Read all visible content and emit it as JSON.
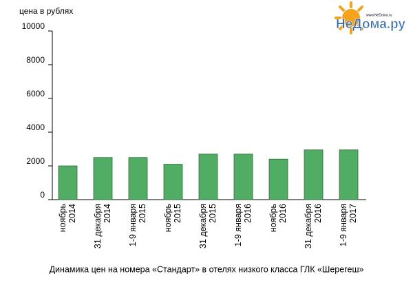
{
  "chart_data": {
    "type": "bar",
    "title": "Динамика цен на номера «Стандарт» в отелях низкого класса ГЛК «Шерегеш»",
    "y_label": "цена в рублях",
    "categories": [
      [
        "ноябрь",
        "2014"
      ],
      [
        "31 декабря",
        "2014"
      ],
      [
        "1-9 января",
        "2015"
      ],
      [
        "ноябрь",
        "2015"
      ],
      [
        "31 декабря",
        "2015"
      ],
      [
        "1-9 января",
        "2016"
      ],
      [
        "ноябрь",
        "2016"
      ],
      [
        "31 декабря",
        "2016"
      ],
      [
        "1-9 января",
        "2017"
      ]
    ],
    "values": [
      2000,
      2500,
      2500,
      2100,
      2700,
      2700,
      2400,
      2950,
      2950
    ],
    "color": "#52ad64",
    "ylim": [
      0,
      10000
    ],
    "yticks": [
      0,
      2000,
      4000,
      6000,
      8000,
      10000
    ],
    "grid": false
  },
  "logo": {
    "text": "НеДома.ру",
    "url": "www.NeDoma.ru"
  }
}
